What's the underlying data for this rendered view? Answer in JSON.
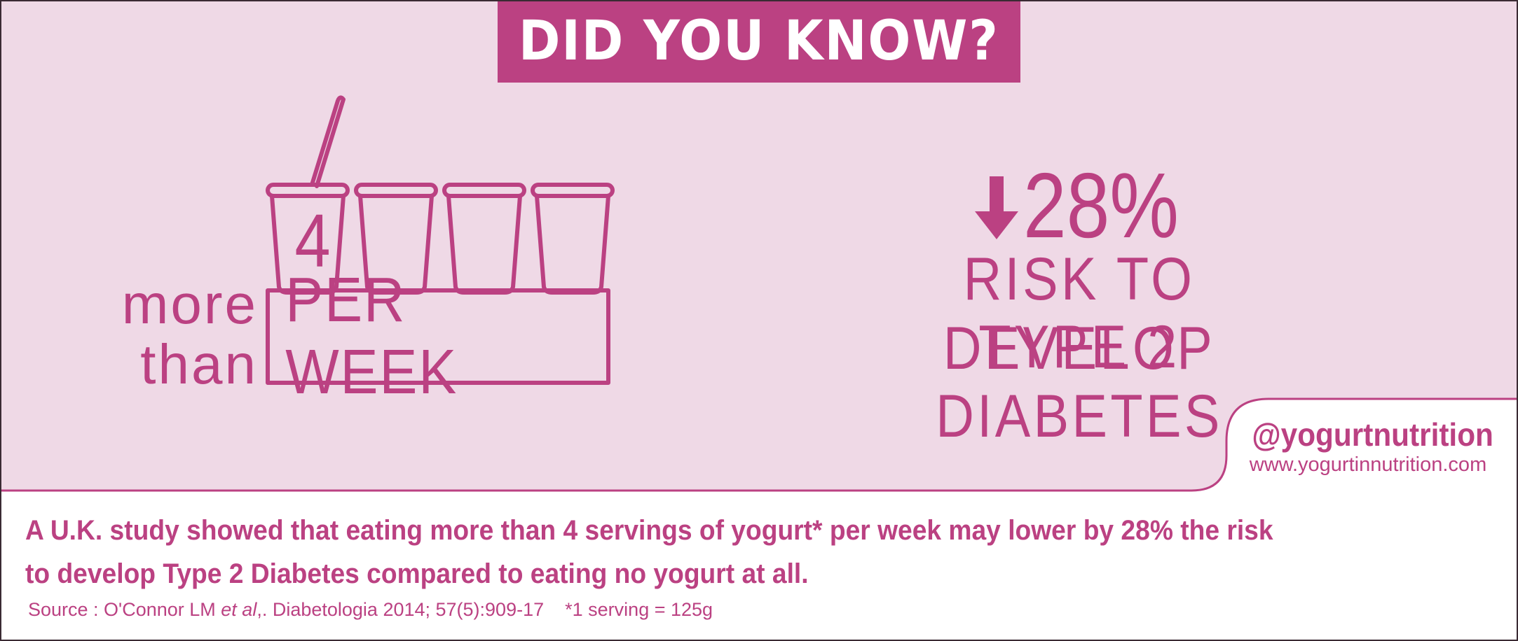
{
  "header": {
    "title": "DID YOU KNOW?"
  },
  "illustration": {
    "more_than": [
      "more",
      "than"
    ],
    "number": "4",
    "per_week": "PER WEEK"
  },
  "stat": {
    "value": "28%",
    "direction": "down",
    "line1": "RISK TO DEVELOP",
    "line2": "TYPE 2 DIABETES"
  },
  "social": {
    "handle": "@yogurtnutrition",
    "url": "www.yogurtinnutrition.com"
  },
  "body": {
    "line1": "A U.K. study showed that eating more than 4 servings of yogurt* per week may lower by 28% the risk",
    "line2": "to develop Type 2 Diabetes compared to eating no yogurt at all."
  },
  "source": {
    "prefix": "Source : O'Connor LM ",
    "italic": "et al",
    "suffix": ",. Diabetologia 2014; 57(5):909-17",
    "note": "*1 serving = 125g"
  },
  "colors": {
    "accent": "#bb4182",
    "panel_background": "#efd9e6",
    "background": "#ffffff"
  }
}
